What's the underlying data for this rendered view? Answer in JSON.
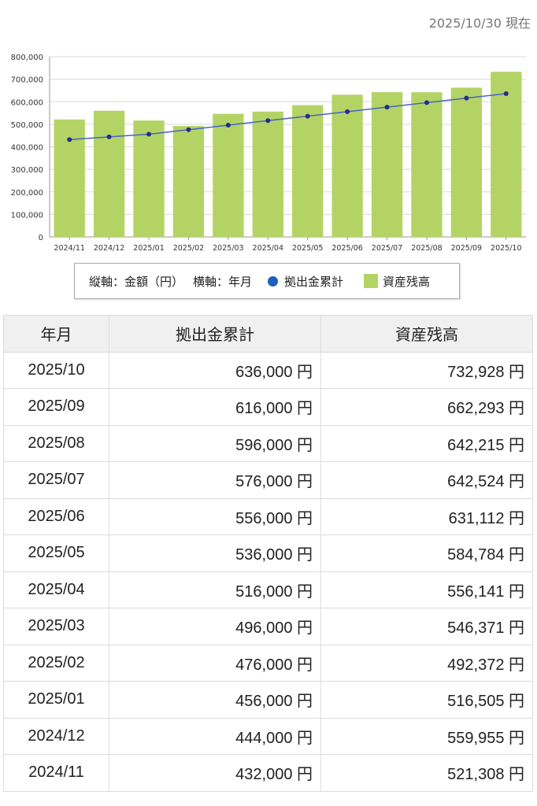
{
  "as_of": "2025/10/30 現在",
  "legend": {
    "yaxis": "縦軸：金額（円）",
    "xaxis": "横軸：年月",
    "series_line": "拠出金累計",
    "series_bar": "資産残高"
  },
  "colors": {
    "bar": "#b3d465",
    "line": "#4a63c8",
    "marker": "#2a2a8a"
  },
  "chart_data": {
    "type": "bar",
    "categories": [
      "2024/11",
      "2024/12",
      "2025/01",
      "2025/02",
      "2025/03",
      "2025/04",
      "2025/05",
      "2025/06",
      "2025/07",
      "2025/08",
      "2025/09",
      "2025/10"
    ],
    "series": [
      {
        "name": "資産残高",
        "type": "bar",
        "values": [
          521308,
          559955,
          516505,
          492372,
          546371,
          556141,
          584784,
          631112,
          642524,
          642215,
          662293,
          732928
        ]
      },
      {
        "name": "拠出金累計",
        "type": "line",
        "values": [
          432000,
          444000,
          456000,
          476000,
          496000,
          516000,
          536000,
          556000,
          576000,
          596000,
          616000,
          636000
        ]
      }
    ],
    "ylim": [
      0,
      800000
    ],
    "yticks": [
      "0",
      "100,000",
      "200,000",
      "300,000",
      "400,000",
      "500,000",
      "600,000",
      "700,000",
      "800,000"
    ],
    "grid": true,
    "legend_position": "bottom"
  },
  "table": {
    "headers": [
      "年月",
      "拠出金累計",
      "資産残高"
    ],
    "rows": [
      [
        "2025/10",
        "636,000 円",
        "732,928 円"
      ],
      [
        "2025/09",
        "616,000 円",
        "662,293 円"
      ],
      [
        "2025/08",
        "596,000 円",
        "642,215 円"
      ],
      [
        "2025/07",
        "576,000 円",
        "642,524 円"
      ],
      [
        "2025/06",
        "556,000 円",
        "631,112 円"
      ],
      [
        "2025/05",
        "536,000 円",
        "584,784 円"
      ],
      [
        "2025/04",
        "516,000 円",
        "556,141 円"
      ],
      [
        "2025/03",
        "496,000 円",
        "546,371 円"
      ],
      [
        "2025/02",
        "476,000 円",
        "492,372 円"
      ],
      [
        "2025/01",
        "456,000 円",
        "516,505 円"
      ],
      [
        "2024/12",
        "444,000 円",
        "559,955 円"
      ],
      [
        "2024/11",
        "432,000 円",
        "521,308 円"
      ]
    ]
  }
}
